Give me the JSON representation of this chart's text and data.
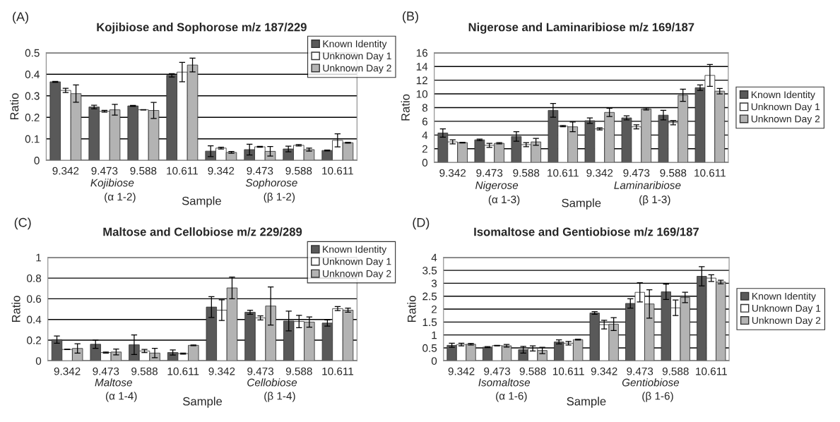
{
  "chart_data": [
    {
      "type": "bar",
      "title": "Kojibiose and Sophorose m/z 187/229",
      "xlabel": "Sample",
      "ylabel": "Ratio",
      "categories": [
        "9.342",
        "9.473",
        "9.588",
        "10.611",
        "9.342",
        "9.473",
        "9.588",
        "10.611"
      ],
      "ylim": [
        0,
        0.5
      ],
      "yticks": [
        0,
        0.1,
        0.2,
        0.3,
        0.4,
        0.5
      ],
      "grid": "y",
      "legend": "top right",
      "annotations": [
        "(A)",
        "Kojibiose",
        "(α 1-2)",
        "Sophorose",
        "(β 1-2)"
      ],
      "series": [
        {
          "name": "Known Identity",
          "color": "#595959",
          "values": [
            0.365,
            0.248,
            0.253,
            0.395,
            0.043,
            0.05,
            0.053,
            0.046
          ],
          "errors": [
            0.002,
            0.008,
            0.002,
            0.008,
            0.025,
            0.025,
            0.013,
            0.002
          ]
        },
        {
          "name": "Unknown Day 1",
          "color": "#ffffff",
          "values": [
            0.325,
            0.228,
            0.235,
            0.41,
            0.057,
            0.063,
            0.07,
            0.093
          ],
          "errors": [
            0.01,
            0.004,
            0.001,
            0.045,
            0.004,
            0.002,
            0.003,
            0.03
          ]
        },
        {
          "name": "Unknown Day 2",
          "color": "#b3b3b3",
          "values": [
            0.31,
            0.235,
            0.232,
            0.443,
            0.037,
            0.042,
            0.05,
            0.082
          ],
          "errors": [
            0.04,
            0.025,
            0.037,
            0.032,
            0.004,
            0.022,
            0.007,
            0.002
          ]
        }
      ]
    },
    {
      "type": "bar",
      "title": "Nigerose and Laminaribiose m/z 169/187",
      "xlabel": "Sample",
      "ylabel": "Ratio",
      "categories": [
        "9.342",
        "9.473",
        "9.588",
        "10.611",
        "9.342",
        "9.473",
        "9.588",
        "10.611"
      ],
      "ylim": [
        0,
        16
      ],
      "yticks": [
        0,
        2,
        4,
        6,
        8,
        10,
        12,
        14,
        16
      ],
      "grid": "y",
      "legend": "right",
      "annotations": [
        "(B)",
        "Nigerose",
        "(α 1-3)",
        "Laminaribiose",
        "(β 1-3)"
      ],
      "series": [
        {
          "name": "Known Identity",
          "color": "#595959",
          "values": [
            4.3,
            3.3,
            3.8,
            7.6,
            6.1,
            6.5,
            6.9,
            10.9
          ],
          "errors": [
            0.6,
            0.1,
            0.7,
            1.0,
            0.4,
            0.3,
            0.7,
            0.4
          ]
        },
        {
          "name": "Unknown Day 1",
          "color": "#ffffff",
          "values": [
            3.0,
            2.5,
            2.6,
            5.3,
            4.9,
            5.2,
            5.8,
            12.7
          ],
          "errors": [
            0.3,
            0.3,
            0.3,
            0.1,
            0.15,
            0.3,
            0.3,
            1.6
          ]
        },
        {
          "name": "Unknown Day 2",
          "color": "#b3b3b3",
          "values": [
            2.9,
            2.8,
            3.0,
            5.2,
            7.3,
            7.8,
            9.8,
            10.4
          ],
          "errors": [
            0.05,
            0.1,
            0.5,
            0.7,
            0.6,
            0.15,
            0.9,
            0.4
          ]
        }
      ]
    },
    {
      "type": "bar",
      "title": "Maltose and Cellobiose m/z 229/289",
      "xlabel": "Sample",
      "ylabel": "Ratio",
      "categories": [
        "9.342",
        "9.473",
        "9.588",
        "10.611",
        "9.342",
        "9.473",
        "9.588",
        "10.611"
      ],
      "ylim": [
        0,
        1
      ],
      "yticks": [
        0,
        0.2,
        0.4,
        0.6,
        0.8,
        1
      ],
      "grid": "y",
      "legend": "top right",
      "annotations": [
        "(C)",
        "Maltose",
        "(α 1-4)",
        "Cellobiose",
        "(β 1-4)"
      ],
      "series": [
        {
          "name": "Known Identity",
          "color": "#595959",
          "values": [
            0.205,
            0.16,
            0.155,
            0.08,
            0.52,
            0.47,
            0.385,
            0.365
          ],
          "errors": [
            0.035,
            0.04,
            0.095,
            0.025,
            0.1,
            0.02,
            0.095,
            0.03
          ]
        },
        {
          "name": "Unknown Day 1",
          "color": "#ffffff",
          "values": [
            0.11,
            0.08,
            0.095,
            0.07,
            0.49,
            0.415,
            0.38,
            0.505
          ],
          "errors": [
            0.002,
            0.005,
            0.015,
            0.005,
            0.1,
            0.02,
            0.06,
            0.02
          ]
        },
        {
          "name": "Unknown Day 2",
          "color": "#b3b3b3",
          "values": [
            0.12,
            0.085,
            0.075,
            0.15,
            0.705,
            0.53,
            0.375,
            0.49
          ],
          "errors": [
            0.045,
            0.028,
            0.045,
            0.003,
            0.105,
            0.185,
            0.05,
            0.02
          ]
        }
      ]
    },
    {
      "type": "bar",
      "title": "Isomaltose and Gentiobiose m/z 169/187",
      "xlabel": "Sample",
      "ylabel": "Ratio",
      "categories": [
        "9.342",
        "9.473",
        "9.588",
        "10.611",
        "9.342",
        "9.473",
        "9.588",
        "10.611"
      ],
      "ylim": [
        0,
        4
      ],
      "yticks": [
        0,
        0.5,
        1,
        1.5,
        2,
        2.5,
        3,
        3.5,
        4
      ],
      "grid": "y",
      "legend": "right",
      "annotations": [
        "(D)",
        "Isomaltose",
        "(α 1-6)",
        "Gentiobiose",
        "(β 1-6)"
      ],
      "series": [
        {
          "name": "Known Identity",
          "color": "#595959",
          "values": [
            0.6,
            0.53,
            0.43,
            0.73,
            1.85,
            2.22,
            2.67,
            3.27
          ],
          "errors": [
            0.08,
            0.02,
            0.13,
            0.08,
            0.05,
            0.18,
            0.3,
            0.37
          ]
        },
        {
          "name": "Unknown Day 1",
          "color": "#ffffff",
          "values": [
            0.63,
            0.59,
            0.48,
            0.68,
            1.4,
            2.65,
            2.05,
            3.2
          ],
          "errors": [
            0.05,
            0.01,
            0.1,
            0.07,
            0.17,
            0.37,
            0.3,
            0.13
          ]
        },
        {
          "name": "Unknown Day 2",
          "color": "#b3b3b3",
          "values": [
            0.64,
            0.58,
            0.4,
            0.82,
            1.42,
            2.2,
            2.45,
            3.05
          ],
          "errors": [
            0.03,
            0.05,
            0.12,
            0.02,
            0.25,
            0.55,
            0.2,
            0.07
          ]
        }
      ]
    }
  ]
}
